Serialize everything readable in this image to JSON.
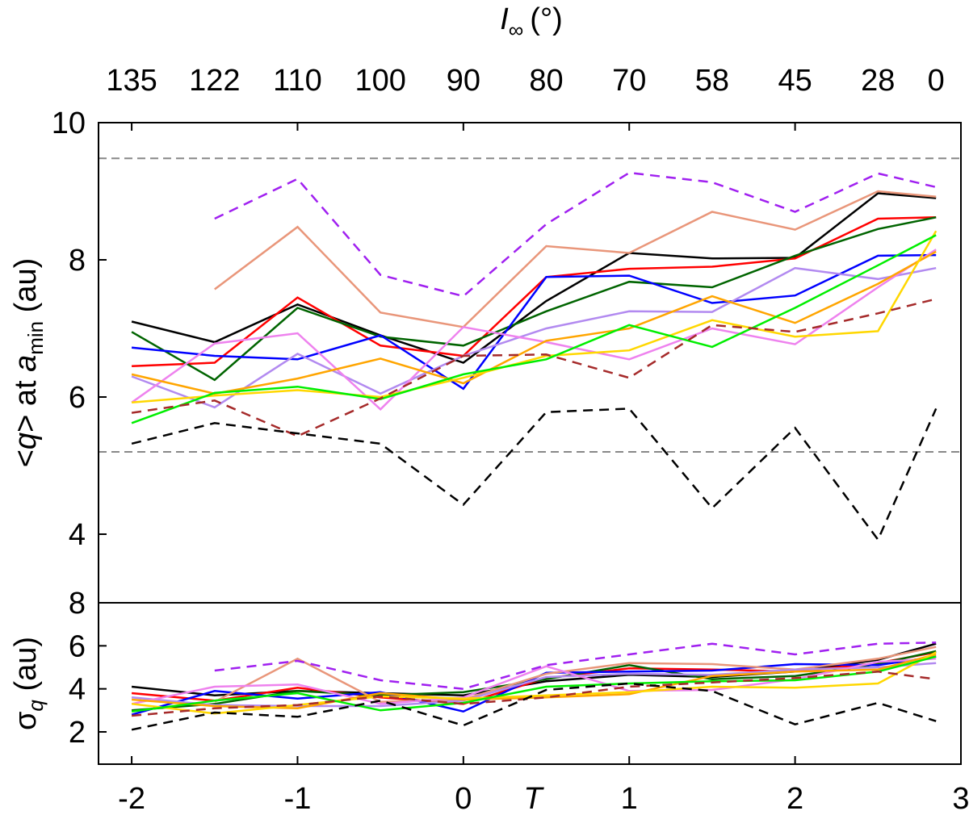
{
  "chart_data": [
    {
      "type": "line",
      "panel": "top",
      "ylabel": "<q> at a_min (au)",
      "ylabel_parts": {
        "pre": "<",
        "q": "q",
        "mid": "> at ",
        "a": "a",
        "sub": "min",
        "unit": " (au)"
      },
      "xlim": [
        -2.2,
        3
      ],
      "ylim": [
        3.0,
        10
      ],
      "yticks": [
        4,
        6,
        8,
        10
      ],
      "ytick_labels": [
        "4",
        "6",
        "8",
        "10"
      ],
      "reference_lines": [
        9.48,
        5.2
      ],
      "top_axis": {
        "title_main": "I",
        "title_sub": "∞",
        "title_unit": "(°)",
        "ticks": [
          {
            "label": "135",
            "x": -2.0
          },
          {
            "label": "122",
            "x": -1.5
          },
          {
            "label": "110",
            "x": -1.0
          },
          {
            "label": "100",
            "x": -0.5
          },
          {
            "label": "90",
            "x": 0.0
          },
          {
            "label": "80",
            "x": 0.5
          },
          {
            "label": "70",
            "x": 1.0
          },
          {
            "label": "58",
            "x": 1.5
          },
          {
            "label": "45",
            "x": 2.0
          },
          {
            "label": "28",
            "x": 2.5
          },
          {
            "label": "0",
            "x": 2.85
          }
        ]
      },
      "x": [
        -2.0,
        -1.5,
        -1.0,
        -0.5,
        0.0,
        0.5,
        1.0,
        1.5,
        2.0,
        2.5,
        2.85
      ],
      "series": [
        {
          "name": "black",
          "color": "#000000",
          "dash": false,
          "values": [
            7.1,
            6.8,
            7.35,
            6.9,
            6.5,
            7.4,
            8.1,
            8.02,
            8.03,
            8.97,
            8.9
          ]
        },
        {
          "name": "red",
          "color": "#ff0000",
          "dash": false,
          "values": [
            6.45,
            6.5,
            7.45,
            6.75,
            6.6,
            7.75,
            7.87,
            7.9,
            8.02,
            8.6,
            8.62
          ]
        },
        {
          "name": "darkgreen",
          "color": "#006400",
          "dash": false,
          "values": [
            6.95,
            6.25,
            7.3,
            6.88,
            6.75,
            7.25,
            7.68,
            7.6,
            8.06,
            8.45,
            8.62
          ]
        },
        {
          "name": "blue",
          "color": "#0000ff",
          "dash": false,
          "values": [
            6.72,
            6.6,
            6.55,
            6.9,
            6.12,
            7.75,
            7.77,
            7.37,
            7.48,
            8.06,
            8.07
          ]
        },
        {
          "name": "salmon",
          "color": "#e9967a",
          "dash": false,
          "values": [
            null,
            7.57,
            8.48,
            7.23,
            7.02,
            8.2,
            8.1,
            8.7,
            8.44,
            9.0,
            8.92
          ]
        },
        {
          "name": "mediumpurple",
          "color": "#b28af0",
          "dash": false,
          "values": [
            6.3,
            5.85,
            6.63,
            6.05,
            6.6,
            7.0,
            7.25,
            7.24,
            7.88,
            7.72,
            7.88
          ]
        },
        {
          "name": "violet",
          "color": "#ee82ee",
          "dash": false,
          "values": [
            5.92,
            6.78,
            6.93,
            5.82,
            7.02,
            6.8,
            6.55,
            7.0,
            6.77,
            7.6,
            8.15
          ]
        },
        {
          "name": "orange",
          "color": "#ffa500",
          "dash": false,
          "values": [
            6.33,
            6.05,
            6.27,
            6.56,
            6.2,
            6.82,
            7.0,
            7.47,
            7.08,
            7.65,
            8.12
          ]
        },
        {
          "name": "gold",
          "color": "#ffd700",
          "dash": false,
          "values": [
            5.92,
            6.02,
            6.1,
            6.0,
            6.28,
            6.6,
            6.68,
            7.12,
            6.88,
            6.96,
            8.42
          ]
        },
        {
          "name": "lime",
          "color": "#00ee00",
          "dash": false,
          "values": [
            5.62,
            6.06,
            6.15,
            5.97,
            6.33,
            6.55,
            7.05,
            6.73,
            7.3,
            7.92,
            8.36
          ]
        },
        {
          "name": "purple-dashed",
          "color": "#a020f0",
          "dash": true,
          "values": [
            null,
            8.6,
            9.18,
            7.78,
            7.47,
            8.52,
            9.27,
            9.13,
            8.7,
            9.26,
            9.06
          ]
        },
        {
          "name": "brown-dashed",
          "color": "#a52a2a",
          "dash": true,
          "values": [
            5.77,
            5.95,
            5.43,
            5.98,
            6.6,
            6.62,
            6.28,
            7.05,
            6.95,
            7.22,
            7.43
          ]
        },
        {
          "name": "black-dashed",
          "color": "#000000",
          "dash": true,
          "values": [
            5.32,
            5.62,
            5.47,
            5.32,
            4.43,
            5.78,
            5.83,
            4.38,
            5.55,
            3.92,
            5.83
          ]
        }
      ]
    },
    {
      "type": "line",
      "panel": "bottom",
      "ylabel": "σq (au)",
      "ylabel_parts": {
        "sigma": "σ",
        "sub": "q",
        "unit": " (au)"
      },
      "xlabel": "T",
      "xlim": [
        -2.2,
        3
      ],
      "ylim": [
        0.5,
        8
      ],
      "yticks": [
        2,
        4,
        6,
        8
      ],
      "ytick_labels": [
        "2",
        "4",
        "6",
        "8"
      ],
      "xticks": [
        -2,
        -1,
        0,
        1,
        2,
        3
      ],
      "xtick_labels": [
        "-2",
        "-1",
        "0",
        "1",
        "2",
        "3"
      ],
      "x": [
        -2.0,
        -1.5,
        -1.0,
        -0.5,
        0.0,
        0.5,
        1.0,
        1.5,
        2.0,
        2.5,
        2.85
      ],
      "series": [
        {
          "name": "black",
          "color": "#000000",
          "dash": false,
          "values": [
            4.1,
            3.7,
            3.9,
            3.8,
            3.7,
            4.35,
            4.65,
            4.55,
            4.8,
            5.35,
            6.1
          ]
        },
        {
          "name": "red",
          "color": "#ff0000",
          "dash": false,
          "values": [
            3.8,
            3.45,
            4.05,
            3.6,
            3.3,
            4.5,
            4.95,
            4.9,
            4.8,
            5.2,
            5.7
          ]
        },
        {
          "name": "darkgreen",
          "color": "#006400",
          "dash": false,
          "values": [
            3.0,
            3.3,
            3.9,
            3.7,
            3.85,
            4.45,
            5.1,
            4.45,
            4.6,
            5.15,
            5.75
          ]
        },
        {
          "name": "blue",
          "color": "#0000ff",
          "dash": false,
          "values": [
            2.8,
            3.9,
            3.55,
            3.85,
            2.95,
            4.75,
            4.8,
            4.85,
            5.15,
            5.1,
            5.5
          ]
        },
        {
          "name": "salmon",
          "color": "#e9967a",
          "dash": false,
          "values": [
            null,
            3.4,
            5.4,
            3.4,
            3.5,
            4.7,
            5.2,
            5.15,
            4.9,
            5.4,
            5.95
          ]
        },
        {
          "name": "mediumpurple",
          "color": "#b28af0",
          "dash": false,
          "values": [
            3.6,
            3.25,
            3.2,
            3.2,
            3.45,
            4.55,
            4.7,
            4.65,
            4.9,
            5.0,
            5.2
          ]
        },
        {
          "name": "violet",
          "color": "#ee82ee",
          "dash": false,
          "values": [
            3.3,
            4.1,
            4.2,
            3.3,
            3.6,
            5.05,
            3.9,
            3.95,
            4.45,
            5.25,
            5.4
          ]
        },
        {
          "name": "orange",
          "color": "#ffa500",
          "dash": false,
          "values": [
            3.5,
            3.2,
            3.1,
            3.8,
            3.5,
            3.6,
            3.75,
            4.6,
            4.8,
            4.9,
            5.6
          ]
        },
        {
          "name": "gold",
          "color": "#ffd700",
          "dash": false,
          "values": [
            3.3,
            2.85,
            3.25,
            3.65,
            3.55,
            3.7,
            3.85,
            4.1,
            4.05,
            4.25,
            5.7
          ]
        },
        {
          "name": "lime",
          "color": "#00ee00",
          "dash": false,
          "values": [
            2.95,
            3.45,
            3.8,
            3.0,
            3.35,
            4.1,
            4.25,
            4.35,
            4.4,
            4.8,
            5.5
          ]
        },
        {
          "name": "purple-dashed",
          "color": "#a020f0",
          "dash": true,
          "values": [
            null,
            4.85,
            5.3,
            4.4,
            4.0,
            5.1,
            5.6,
            6.1,
            5.6,
            6.1,
            6.15
          ]
        },
        {
          "name": "brown-dashed",
          "color": "#a52a2a",
          "dash": true,
          "values": [
            2.75,
            3.1,
            3.25,
            3.65,
            3.3,
            3.6,
            4.1,
            4.3,
            4.5,
            4.8,
            4.45
          ]
        },
        {
          "name": "black-dashed",
          "color": "#000000",
          "dash": true,
          "values": [
            2.1,
            2.9,
            2.7,
            3.45,
            2.3,
            3.95,
            4.25,
            3.9,
            2.35,
            3.35,
            2.5
          ]
        }
      ]
    }
  ]
}
